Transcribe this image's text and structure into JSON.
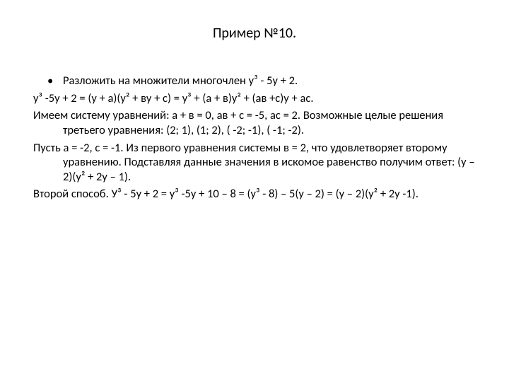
{
  "slide": {
    "title": "Пример №10.",
    "bullet": "•",
    "lines": {
      "l1": "Разложить на множители многочлен у³ - 5у + 2.",
      "l2": "у³ -5у + 2 = (у + а)(у² + ву + с) = у³ + (а + в)у² + (ав +с)у + ас.",
      "l3": "Имеем систему уравнений: а + в = 0, ав + с = -5, ас = 2. Возможные целые решения третьего уравнения: (2; 1), (1; 2), ( -2; -1), ( -1; -2).",
      "l4": "Пусть а = -2, с = -1. Из первого уравнения системы в = 2, что удовлетворяет второму уравнению. Подставляя данные значения в искомое равенство получим ответ: (у – 2)(у² + 2у – 1).",
      "l5": "Второй способ. У³ - 5у + 2 = у³ -5у + 10 – 8 = (у³ - 8) – 5(у – 2) = (у – 2)(у² + 2у -1)."
    }
  },
  "style": {
    "background": "#ffffff",
    "text_color": "#000000",
    "title_fontsize": 20,
    "body_fontsize": 16.5,
    "font_family": "Calibri, Arial, sans-serif"
  }
}
